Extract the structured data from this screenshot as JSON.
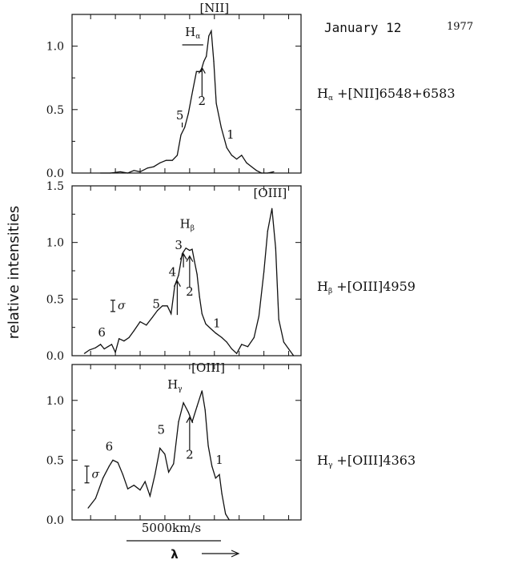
{
  "header": {
    "date": "January 12",
    "year": "1977"
  },
  "ylabel": "relative intensities",
  "scale_bar_label": "5000km/s",
  "lambda_label": "λ",
  "chart_data": [
    {
      "type": "line",
      "title": "",
      "side_label": {
        "main": "H",
        "sub": "α",
        "rest": "+[NII]6548+6583"
      },
      "ylim": [
        0,
        1.25
      ],
      "y_ticks": [
        {
          "v": 0.0,
          "label": "0.0"
        },
        {
          "v": 0.5,
          "label": "0.5"
        },
        {
          "v": 1.0,
          "label": "1.0"
        }
      ],
      "points": [
        [
          -7.2,
          0.0
        ],
        [
          -6.4,
          0.0
        ],
        [
          -5.6,
          0.01
        ],
        [
          -5.0,
          0.0
        ],
        [
          -4.5,
          0.02
        ],
        [
          -4.0,
          0.01
        ],
        [
          -3.4,
          0.04
        ],
        [
          -2.9,
          0.05
        ],
        [
          -2.4,
          0.08
        ],
        [
          -1.9,
          0.1
        ],
        [
          -1.4,
          0.1
        ],
        [
          -1.0,
          0.14
        ],
        [
          -0.7,
          0.3
        ],
        [
          -0.4,
          0.36
        ],
        [
          -0.1,
          0.47
        ],
        [
          0.25,
          0.65
        ],
        [
          0.55,
          0.8
        ],
        [
          0.9,
          0.8
        ],
        [
          1.15,
          0.88
        ],
        [
          1.35,
          0.92
        ],
        [
          1.55,
          1.08
        ],
        [
          1.75,
          1.12
        ],
        [
          1.95,
          0.88
        ],
        [
          2.15,
          0.55
        ],
        [
          2.55,
          0.36
        ],
        [
          3.0,
          0.2
        ],
        [
          3.4,
          0.14
        ],
        [
          3.8,
          0.11
        ],
        [
          4.2,
          0.14
        ],
        [
          4.6,
          0.08
        ],
        [
          5.0,
          0.05
        ],
        [
          5.4,
          0.02
        ],
        [
          5.8,
          0.0
        ],
        [
          6.3,
          0.0
        ],
        [
          6.8,
          0.01
        ]
      ],
      "annotations": [
        {
          "type": "text",
          "text": "[NII]",
          "x": 2.0,
          "y": 1.27
        },
        {
          "type": "text",
          "text": "H",
          "sub": "α",
          "x": 0.25,
          "y": 1.08
        },
        {
          "type": "bar",
          "x1": -0.6,
          "x2": 1.1,
          "y": 1.01
        },
        {
          "type": "arrow",
          "label": "2",
          "x": 1.0,
          "y_from": 0.6,
          "y_to": 0.83
        },
        {
          "type": "mark",
          "label": "5",
          "x": -0.6,
          "y": 0.36
        },
        {
          "type": "text",
          "text": "1",
          "x": 3.3,
          "y": 0.27
        }
      ]
    },
    {
      "type": "line",
      "title": "",
      "side_label": {
        "main": "H",
        "sub": "β",
        "rest": "+[OIII]4959"
      },
      "ylim": [
        0,
        1.5
      ],
      "y_ticks": [
        {
          "v": 0.0,
          "label": "0.0"
        },
        {
          "v": 0.5,
          "label": "0.5"
        },
        {
          "v": 1.0,
          "label": "1.0"
        },
        {
          "v": 1.5,
          "label": "1.5"
        }
      ],
      "points": [
        [
          -8.5,
          0.02
        ],
        [
          -8.1,
          0.05
        ],
        [
          -7.6,
          0.07
        ],
        [
          -7.2,
          0.1
        ],
        [
          -6.9,
          0.06
        ],
        [
          -6.6,
          0.08
        ],
        [
          -6.3,
          0.1
        ],
        [
          -6.0,
          0.03
        ],
        [
          -5.7,
          0.15
        ],
        [
          -5.3,
          0.13
        ],
        [
          -4.9,
          0.16
        ],
        [
          -4.5,
          0.22
        ],
        [
          -4.0,
          0.3
        ],
        [
          -3.5,
          0.27
        ],
        [
          -3.0,
          0.34
        ],
        [
          -2.6,
          0.4
        ],
        [
          -2.2,
          0.44
        ],
        [
          -1.8,
          0.44
        ],
        [
          -1.5,
          0.37
        ],
        [
          -1.2,
          0.62
        ],
        [
          -0.9,
          0.71
        ],
        [
          -0.6,
          0.9
        ],
        [
          -0.3,
          0.95
        ],
        [
          0.0,
          0.93
        ],
        [
          0.2,
          0.94
        ],
        [
          0.4,
          0.83
        ],
        [
          0.6,
          0.72
        ],
        [
          0.8,
          0.52
        ],
        [
          1.0,
          0.37
        ],
        [
          1.3,
          0.28
        ],
        [
          1.7,
          0.24
        ],
        [
          2.1,
          0.2
        ],
        [
          2.6,
          0.16
        ],
        [
          3.0,
          0.12
        ],
        [
          3.4,
          0.06
        ],
        [
          3.8,
          0.02
        ],
        [
          4.2,
          0.1
        ],
        [
          4.7,
          0.08
        ],
        [
          5.2,
          0.16
        ],
        [
          5.6,
          0.35
        ],
        [
          6.0,
          0.74
        ],
        [
          6.3,
          1.1
        ],
        [
          6.65,
          1.3
        ],
        [
          6.95,
          0.95
        ],
        [
          7.2,
          0.32
        ],
        [
          7.6,
          0.12
        ],
        [
          8.0,
          0.06
        ],
        [
          8.4,
          0.0
        ]
      ],
      "annotations": [
        {
          "type": "text",
          "text": "[OIII]",
          "x": 6.5,
          "y": 1.4
        },
        {
          "type": "text",
          "text": "H",
          "sub": "β",
          "x": -0.2,
          "y": 1.13
        },
        {
          "type": "arrow",
          "label": "2",
          "x": 0.0,
          "y_from": 0.6,
          "y_to": 0.88
        },
        {
          "type": "arrow",
          "label": "3",
          "x": -0.5,
          "y_from": 0.78,
          "y_to": 0.9
        },
        {
          "type": "arrow",
          "label": "4",
          "x": -1.0,
          "y_from": 0.36,
          "y_to": 0.66
        },
        {
          "type": "text",
          "text": "5",
          "x": -2.7,
          "y": 0.42
        },
        {
          "type": "text",
          "text": "6",
          "x": -7.1,
          "y": 0.17
        },
        {
          "type": "text",
          "text": "1",
          "x": 2.2,
          "y": 0.25
        },
        {
          "type": "errbar",
          "label": "σ",
          "x": -6.2,
          "y": 0.44,
          "half": 0.05
        }
      ]
    },
    {
      "type": "line",
      "title": "",
      "side_label": {
        "main": "H",
        "sub": "γ",
        "rest": "+[OIII]4363"
      },
      "ylim": [
        0,
        1.3
      ],
      "y_ticks": [
        {
          "v": 0.0,
          "label": "0.0"
        },
        {
          "v": 0.5,
          "label": "0.5"
        },
        {
          "v": 1.0,
          "label": "1.0"
        }
      ],
      "points": [
        [
          -8.2,
          0.1
        ],
        [
          -7.6,
          0.18
        ],
        [
          -7.0,
          0.35
        ],
        [
          -6.5,
          0.45
        ],
        [
          -6.2,
          0.5
        ],
        [
          -5.8,
          0.48
        ],
        [
          -5.4,
          0.38
        ],
        [
          -5.0,
          0.26
        ],
        [
          -4.5,
          0.29
        ],
        [
          -4.0,
          0.25
        ],
        [
          -3.6,
          0.32
        ],
        [
          -3.2,
          0.2
        ],
        [
          -2.8,
          0.38
        ],
        [
          -2.4,
          0.6
        ],
        [
          -2.0,
          0.55
        ],
        [
          -1.7,
          0.4
        ],
        [
          -1.3,
          0.47
        ],
        [
          -0.9,
          0.82
        ],
        [
          -0.5,
          0.98
        ],
        [
          -0.1,
          0.9
        ],
        [
          0.2,
          0.82
        ],
        [
          0.6,
          0.95
        ],
        [
          1.0,
          1.08
        ],
        [
          1.25,
          0.92
        ],
        [
          1.5,
          0.62
        ],
        [
          1.8,
          0.45
        ],
        [
          2.1,
          0.35
        ],
        [
          2.4,
          0.38
        ],
        [
          2.6,
          0.22
        ],
        [
          2.9,
          0.05
        ],
        [
          3.2,
          0.0
        ]
      ],
      "annotations": [
        {
          "type": "text",
          "text": "[OIII]",
          "x": 1.5,
          "y": 1.24
        },
        {
          "type": "text",
          "text": "H",
          "sub": "γ",
          "x": -1.2,
          "y": 1.1
        },
        {
          "type": "arrow",
          "label": "2",
          "x": 0.0,
          "y_from": 0.58,
          "y_to": 0.86
        },
        {
          "type": "text",
          "text": "5",
          "x": -2.3,
          "y": 0.72
        },
        {
          "type": "text",
          "text": "6",
          "x": -6.5,
          "y": 0.58
        },
        {
          "type": "text",
          "text": "1",
          "x": 2.4,
          "y": 0.47
        },
        {
          "type": "errbar",
          "label": "σ",
          "x": -8.3,
          "y": 0.38,
          "half": 0.07
        }
      ]
    }
  ]
}
